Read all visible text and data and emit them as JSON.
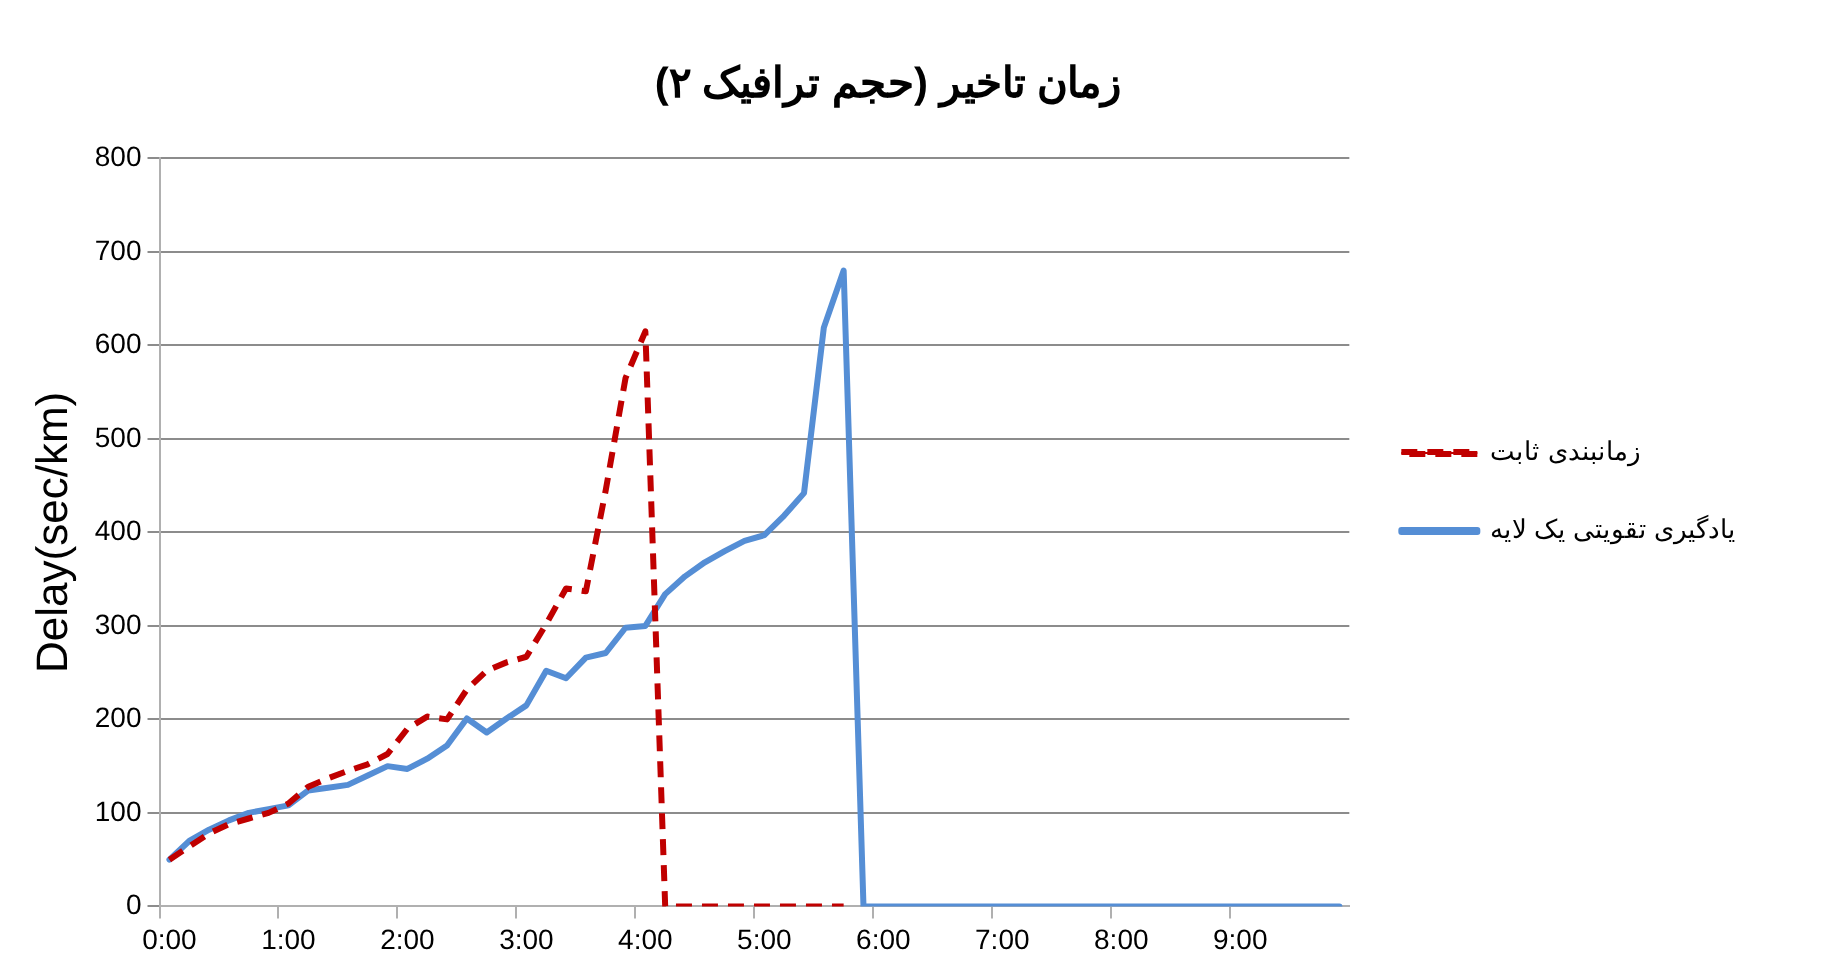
{
  "chart_data": {
    "type": "line",
    "title": "زمان تاخیر (حجم ترافیک ۲)",
    "ylabel": "Delay(sec/km)",
    "categories": [
      "0:00",
      null,
      null,
      null,
      null,
      null,
      "1:00",
      null,
      null,
      null,
      null,
      null,
      "2:00",
      null,
      null,
      null,
      null,
      null,
      "3:00",
      null,
      null,
      null,
      null,
      null,
      "4:00",
      null,
      null,
      null,
      null,
      null,
      "5:00",
      null,
      null,
      null,
      null,
      null,
      "6:00",
      null,
      null,
      null,
      null,
      null,
      "7:00",
      null,
      null,
      null,
      null,
      null,
      "8:00",
      null,
      null,
      null,
      null,
      null,
      "9:00",
      null,
      null,
      null,
      null,
      null
    ],
    "series": [
      {
        "name": "زمانبندی ثابت",
        "color": "#c00000",
        "line_style": "dashed",
        "values": [
          50,
          64,
          78,
          88,
          94,
          100,
          110,
          128,
          137,
          145,
          152,
          163,
          190,
          203,
          200,
          232,
          252,
          261,
          267,
          302,
          340,
          337,
          445,
          565,
          615,
          0,
          0,
          0,
          0,
          0,
          0,
          0,
          0,
          0,
          0,
          null,
          null,
          null,
          null,
          null,
          null,
          null,
          null,
          null,
          null,
          null,
          null,
          null,
          null,
          null,
          null,
          null,
          null,
          null,
          null,
          null,
          null,
          null,
          null,
          null
        ]
      },
      {
        "name": "یادگیری تقویتی یک لایه",
        "color": "#558ed5",
        "line_style": "solid",
        "values": [
          50,
          70,
          82,
          92,
          100,
          104,
          108,
          124,
          127,
          130,
          140,
          150,
          147,
          158,
          172,
          201,
          186,
          201,
          215,
          252,
          244,
          266,
          271,
          298,
          300,
          334,
          353,
          368,
          380,
          391,
          397,
          418,
          442,
          619,
          680,
          0,
          0,
          0,
          0,
          0,
          0,
          0,
          0,
          0,
          0,
          0,
          0,
          0,
          0,
          0,
          0,
          0,
          0,
          0,
          0,
          0,
          0,
          0,
          0,
          0
        ]
      }
    ],
    "ylim": [
      0,
      800
    ],
    "yticks": [
      0,
      100,
      200,
      300,
      400,
      500,
      600,
      700,
      800
    ],
    "grid": "y",
    "legend": "right",
    "marker": "none"
  }
}
